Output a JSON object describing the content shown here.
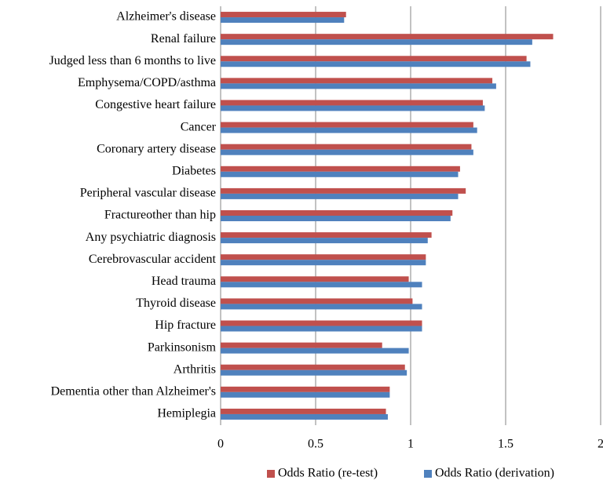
{
  "chart_data": {
    "type": "hbar",
    "categories": [
      "Alzheimer's disease",
      "Renal failure",
      "Judged less than 6 months to live",
      "Emphysema/COPD/asthma",
      "Congestive heart failure",
      "Cancer",
      "Coronary artery disease",
      "Diabetes",
      "Peripheral vascular disease",
      "Fractureother than hip",
      "Any  psychiatric diagnosis",
      "Cerebrovascular  accident",
      "Head  trauma",
      "Thyroid disease",
      "Hip fracture",
      "Parkinsonism",
      "Arthritis",
      "Dementia other than  Alzheimer's",
      "Hemiplegia"
    ],
    "series": [
      {
        "name": "Odds Ratio (re-test)",
        "color": "#c0504d",
        "values": [
          0.66,
          1.75,
          1.61,
          1.43,
          1.38,
          1.33,
          1.32,
          1.26,
          1.29,
          1.22,
          1.11,
          1.08,
          0.99,
          1.01,
          1.06,
          0.85,
          0.97,
          0.89,
          0.87
        ]
      },
      {
        "name": "Odds Ratio (derivation)",
        "color": "#4f81bd",
        "values": [
          0.65,
          1.64,
          1.63,
          1.45,
          1.39,
          1.35,
          1.33,
          1.25,
          1.25,
          1.21,
          1.09,
          1.08,
          1.06,
          1.06,
          1.06,
          0.99,
          0.98,
          0.89,
          0.88
        ]
      }
    ],
    "xlim": [
      0,
      2
    ],
    "xticks": [
      0,
      0.5,
      1,
      1.5,
      2
    ],
    "grid": true,
    "legend": "bottom"
  }
}
